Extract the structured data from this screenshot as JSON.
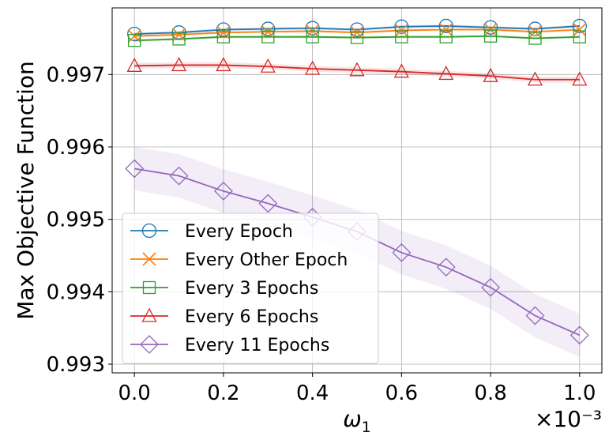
{
  "chart_data": {
    "type": "line",
    "title": "",
    "xlabel": "ω1",
    "x_multiplier": "×10⁻³",
    "ylabel": "Max Objective Function",
    "xlim": [
      -0.05,
      1.05
    ],
    "ylim": [
      0.99288,
      0.99792
    ],
    "xticks": [
      0.0,
      0.2,
      0.4,
      0.6,
      0.8,
      1.0
    ],
    "xtick_labels": [
      "0.0",
      "0.2",
      "0.4",
      "0.6",
      "0.8",
      "1.0"
    ],
    "yticks": [
      0.993,
      0.994,
      0.995,
      0.996,
      0.997
    ],
    "ytick_labels": [
      "0.993",
      "0.994",
      "0.995",
      "0.996",
      "0.997"
    ],
    "grid": true,
    "legend_position": "lower-left",
    "x": [
      0.0,
      0.1,
      0.2,
      0.3,
      0.4,
      0.5,
      0.6,
      0.7,
      0.8,
      0.9,
      1.0
    ],
    "series": [
      {
        "name": "Every Epoch",
        "color": "#1f77b4",
        "marker": "circle",
        "values": [
          0.99756,
          0.99758,
          0.99762,
          0.99763,
          0.99764,
          0.99762,
          0.99766,
          0.99767,
          0.99765,
          0.99763,
          0.99767
        ],
        "band": 2e-05
      },
      {
        "name": "Every Other Epoch",
        "color": "#ff7f0e",
        "marker": "x",
        "values": [
          0.99753,
          0.99755,
          0.99758,
          0.99759,
          0.9976,
          0.99758,
          0.99761,
          0.99762,
          0.99762,
          0.99759,
          0.99762
        ],
        "band": 2e-05
      },
      {
        "name": "Every 3 Epochs",
        "color": "#2ca02c",
        "marker": "square",
        "values": [
          0.99747,
          0.99749,
          0.99752,
          0.99752,
          0.99752,
          0.99751,
          0.99752,
          0.99752,
          0.99753,
          0.9975,
          0.99752
        ],
        "band": 2e-05
      },
      {
        "name": "Every 6 Epochs",
        "color": "#d62728",
        "marker": "triangle",
        "values": [
          0.99712,
          0.99713,
          0.99713,
          0.99711,
          0.99708,
          0.99706,
          0.99704,
          0.99701,
          0.99698,
          0.99693,
          0.99693
        ],
        "band": 4e-05
      },
      {
        "name": "Every 11 Epochs",
        "color": "#9467bd",
        "marker": "diamond",
        "values": [
          0.9957,
          0.9956,
          0.99539,
          0.99522,
          0.99503,
          0.99483,
          0.99454,
          0.99434,
          0.99406,
          0.99367,
          0.9934
        ],
        "band": 0.0003
      }
    ]
  }
}
